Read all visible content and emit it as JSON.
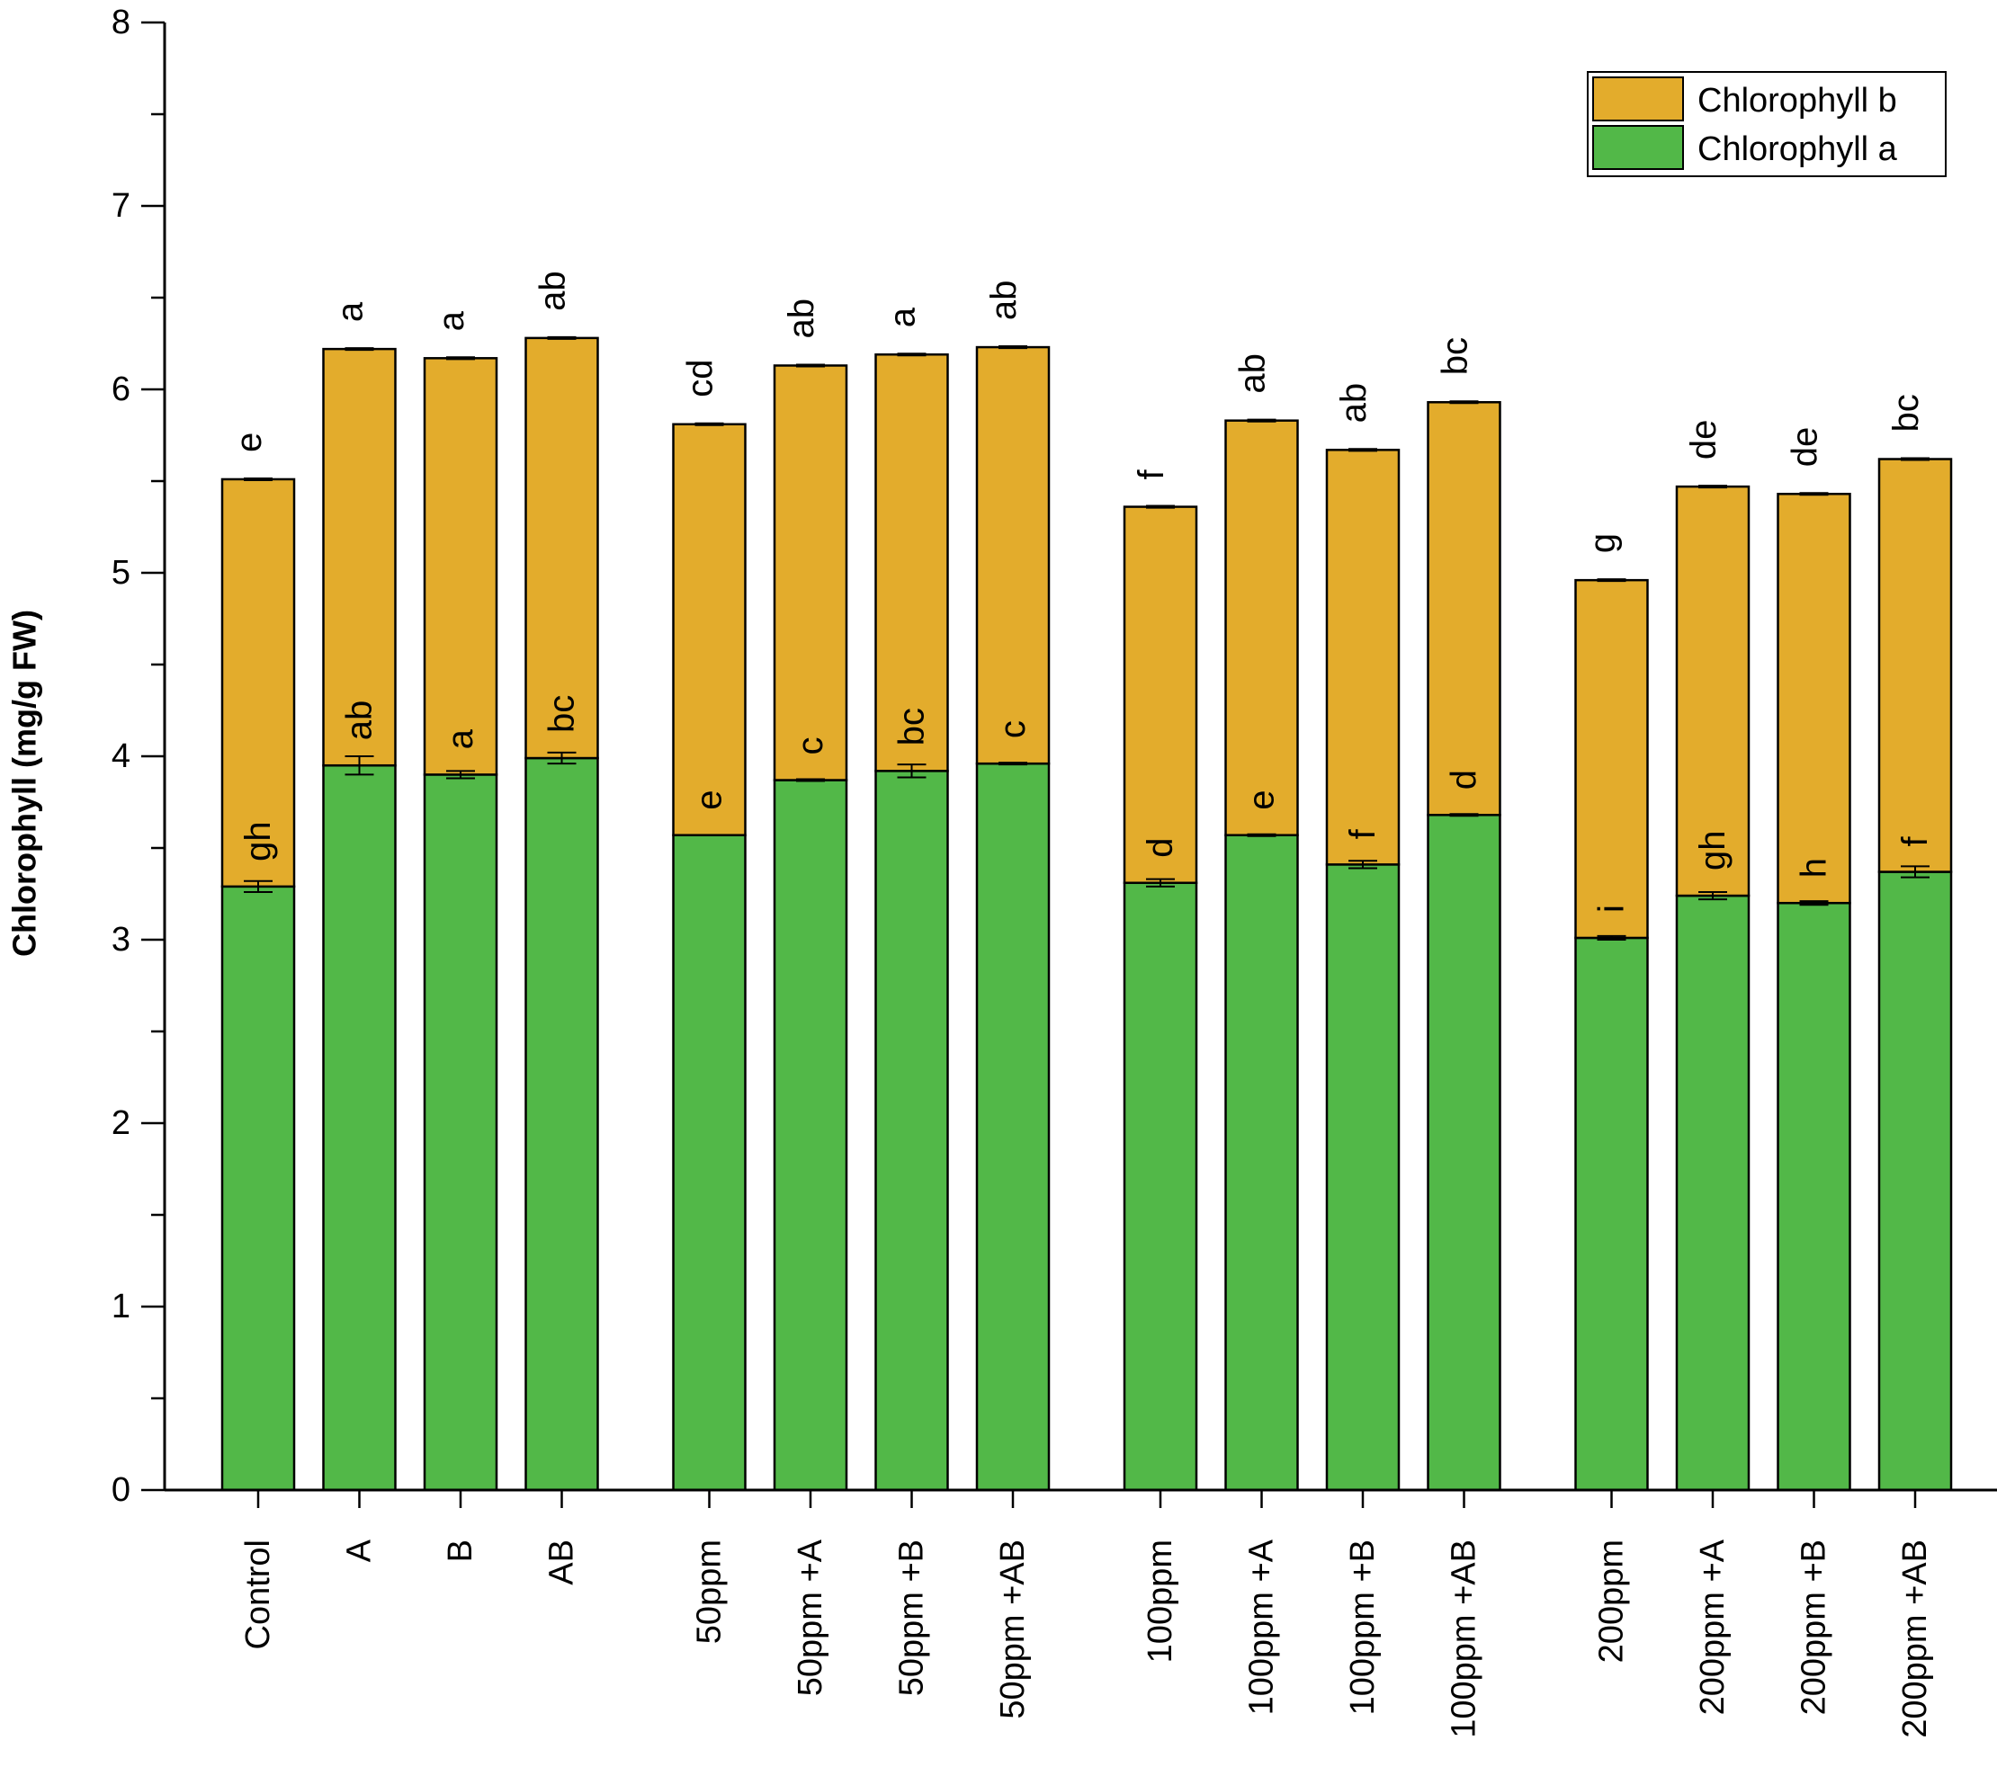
{
  "chart_data": {
    "type": "bar",
    "stacked": true,
    "title": "",
    "xlabel": "",
    "ylabel": "Chlorophyll (mg/g FW)",
    "ylim": [
      0,
      8
    ],
    "yticks": [
      "0",
      "1",
      "2",
      "3",
      "4",
      "5",
      "6",
      "7",
      "8"
    ],
    "categories": [
      "Control",
      "A",
      "B",
      "AB",
      "50ppm",
      "50ppm +A",
      "50ppm +B",
      "50ppm +AB",
      "100ppm",
      "100ppm +A",
      "100ppm +B",
      "100ppm +AB",
      "200ppm",
      "200ppm +A",
      "200ppm +B",
      "200ppm +AB"
    ],
    "groups": [
      [
        0,
        1,
        2,
        3
      ],
      [
        4,
        5,
        6,
        7
      ],
      [
        8,
        9,
        10,
        11
      ],
      [
        12,
        13,
        14,
        15
      ]
    ],
    "series": [
      {
        "name": "Chlorophyll a",
        "color": "#52b848",
        "values": [
          3.29,
          3.95,
          3.9,
          3.99,
          3.57,
          3.87,
          3.92,
          3.96,
          3.31,
          3.57,
          3.41,
          3.68,
          3.01,
          3.24,
          3.2,
          3.37
        ],
        "errors": [
          0.03,
          0.05,
          0.02,
          0.03,
          0.0,
          0.005,
          0.035,
          0.005,
          0.02,
          0.005,
          0.02,
          0.005,
          0.01,
          0.02,
          0.01,
          0.03
        ],
        "labels": [
          "gh",
          "ab",
          "a",
          "bc",
          "e",
          "c",
          "bc",
          "c",
          "d",
          "e",
          "f",
          "d",
          "i",
          "gh",
          "h",
          "f"
        ]
      },
      {
        "name": "Chlorophyll b",
        "color": "#e3ac2c",
        "values": [
          2.22,
          2.27,
          2.27,
          2.29,
          2.24,
          2.26,
          2.27,
          2.27,
          2.05,
          2.26,
          2.26,
          2.25,
          1.95,
          2.23,
          2.23,
          2.25
        ],
        "errors": [
          0.005,
          0.005,
          0.005,
          0.005,
          0.005,
          0.005,
          0.005,
          0.005,
          0.005,
          0.005,
          0.005,
          0.005,
          0.005,
          0.005,
          0.005,
          0.005
        ],
        "labels": [
          "e",
          "a",
          "a",
          "ab",
          "cd",
          "ab",
          "a",
          "ab",
          "f",
          "ab",
          "ab",
          "bc",
          "g",
          "de",
          "de",
          "bc"
        ]
      }
    ],
    "legend": {
      "position": "top-right",
      "entries": [
        "Chlorophyll b",
        "Chlorophyll a"
      ]
    }
  }
}
